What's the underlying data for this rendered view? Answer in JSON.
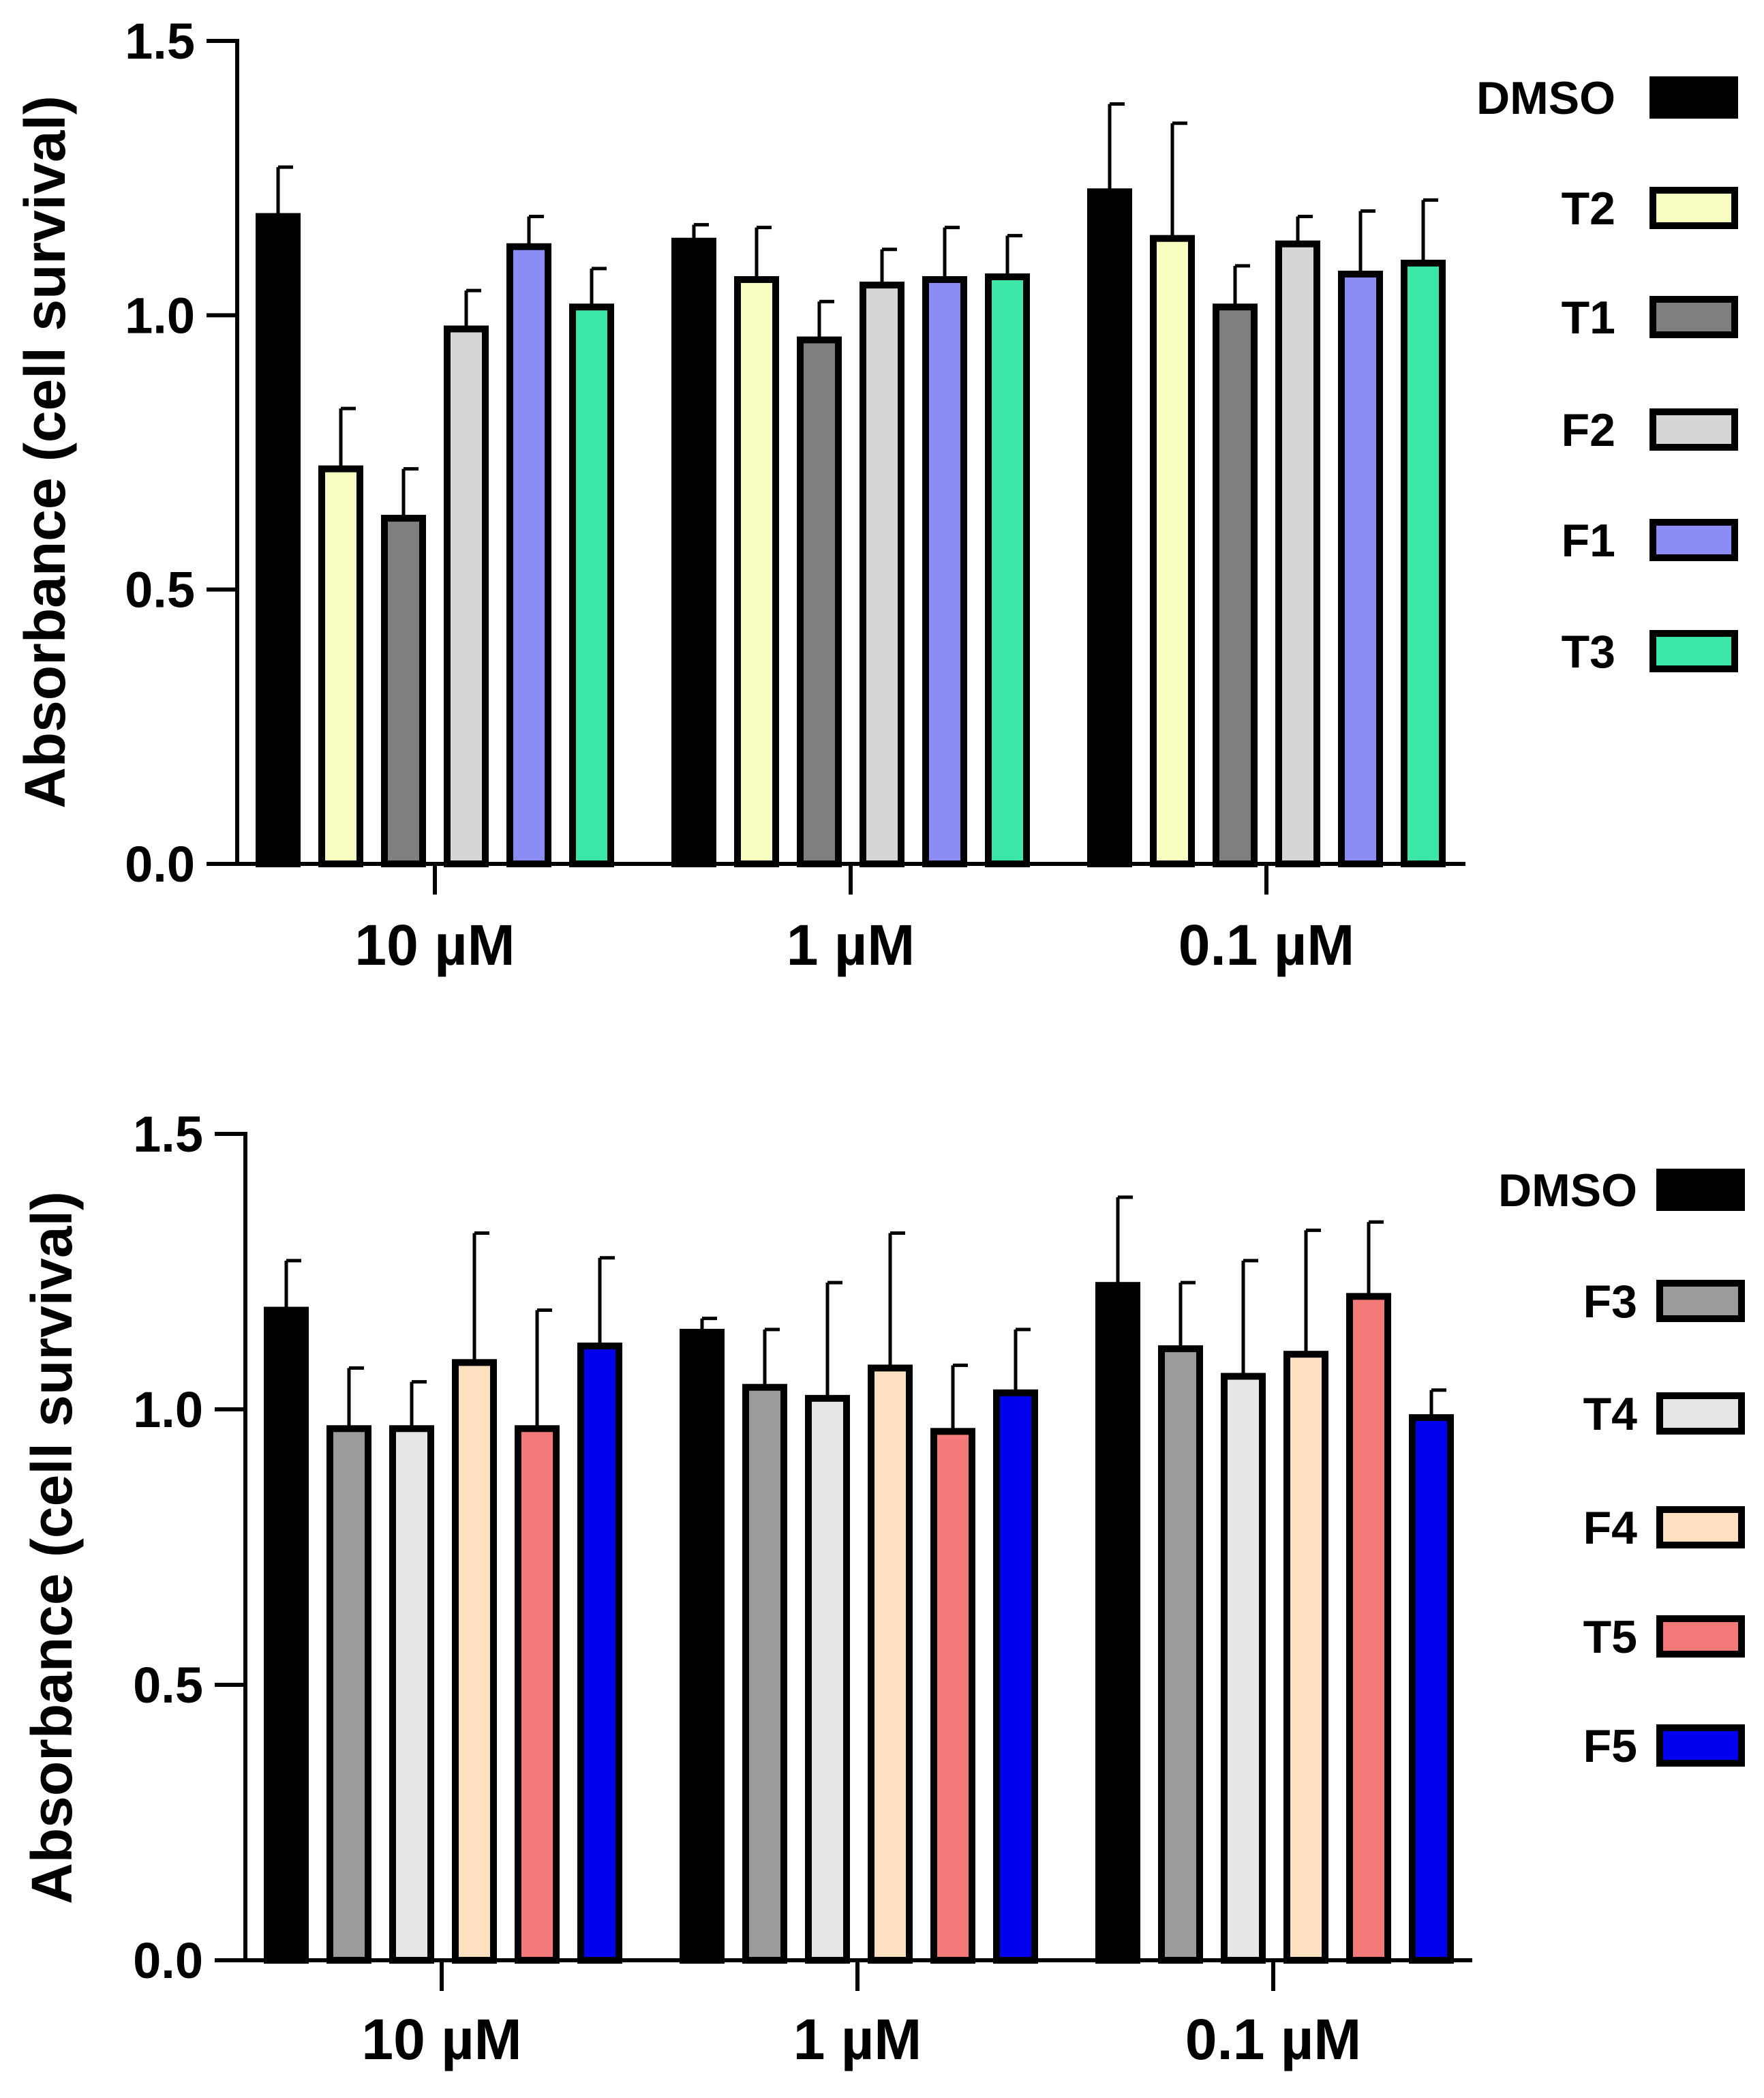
{
  "chart_data": [
    {
      "type": "bar",
      "title": "",
      "xlabel": "",
      "ylabel": "Absorbance (cell survival)",
      "ylim": [
        0,
        1.5
      ],
      "yticks": [
        "0.0",
        "0.5",
        "1.0",
        "1.5"
      ],
      "categories": [
        "10 µM",
        "1 µM",
        "0.1 µM"
      ],
      "legend_position": "right",
      "series": [
        {
          "name": "DMSO",
          "color": "#000000",
          "values": [
            1.18,
            1.135,
            1.225
          ],
          "errors": [
            0.09,
            0.03,
            0.16
          ]
        },
        {
          "name": "T2",
          "color": "#f7fcc0",
          "values": [
            0.72,
            1.065,
            1.14
          ],
          "errors": [
            0.11,
            0.095,
            0.21
          ]
        },
        {
          "name": "T1",
          "color": "#7f7f7f",
          "values": [
            0.63,
            0.955,
            1.015
          ],
          "errors": [
            0.09,
            0.07,
            0.075
          ]
        },
        {
          "name": "F2",
          "color": "#d6d6d6",
          "values": [
            0.975,
            1.055,
            1.13
          ],
          "errors": [
            0.07,
            0.065,
            0.05
          ]
        },
        {
          "name": "F1",
          "color": "#8c8cf5",
          "values": [
            1.125,
            1.065,
            1.075
          ],
          "errors": [
            0.055,
            0.095,
            0.115
          ]
        },
        {
          "name": "T3",
          "color": "#3ce6a6",
          "values": [
            1.015,
            1.07,
            1.095
          ],
          "errors": [
            0.07,
            0.075,
            0.115
          ]
        }
      ]
    },
    {
      "type": "bar",
      "title": "",
      "xlabel": "",
      "ylabel": "Absorbance (cell survival)",
      "ylim": [
        0,
        1.5
      ],
      "yticks": [
        "0.0",
        "0.5",
        "1.0",
        "1.5"
      ],
      "categories": [
        "10 µM",
        "1 µM",
        "0.1 µM"
      ],
      "legend_position": "right",
      "series": [
        {
          "name": "DMSO",
          "color": "#000000",
          "values": [
            1.18,
            1.14,
            1.225
          ],
          "errors": [
            0.09,
            0.025,
            0.16
          ]
        },
        {
          "name": "F3",
          "color": "#9b9b9b",
          "values": [
            0.965,
            1.04,
            1.11
          ],
          "errors": [
            0.11,
            0.105,
            0.12
          ]
        },
        {
          "name": "T4",
          "color": "#e6e6e6",
          "values": [
            0.965,
            1.02,
            1.06
          ],
          "errors": [
            0.085,
            0.21,
            0.21
          ]
        },
        {
          "name": "F4",
          "color": "#fde0c0",
          "values": [
            1.085,
            1.075,
            1.1
          ],
          "errors": [
            0.235,
            0.245,
            0.225
          ]
        },
        {
          "name": "T5",
          "color": "#f47a7a",
          "values": [
            0.965,
            0.96,
            1.205
          ],
          "errors": [
            0.215,
            0.12,
            0.135
          ]
        },
        {
          "name": "F5",
          "color": "#0000ee",
          "values": [
            1.115,
            1.03,
            0.985
          ],
          "errors": [
            0.16,
            0.115,
            0.05
          ]
        }
      ]
    }
  ]
}
